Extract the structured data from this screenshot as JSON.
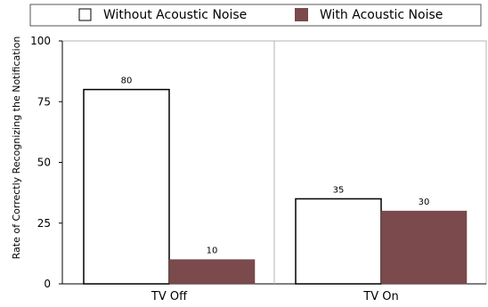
{
  "chart_data": {
    "type": "bar",
    "categories": [
      "TV Off",
      "TV On"
    ],
    "series": [
      {
        "name": "Without Acoustic Noise",
        "values": [
          80,
          35
        ],
        "color": "#ffffff"
      },
      {
        "name": "With Acoustic Noise",
        "values": [
          10,
          30
        ],
        "color": "#7a4a4c"
      }
    ],
    "xlabel": "",
    "ylabel": "Rate of Correctly Recognizing the Notification",
    "ylim": [
      0,
      100
    ],
    "yticks": [
      0,
      25,
      50,
      75,
      100
    ],
    "grid": "vertical divider between categories",
    "legend_position": "top"
  }
}
